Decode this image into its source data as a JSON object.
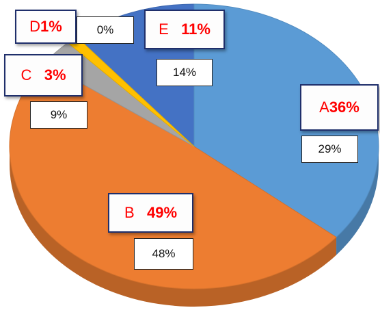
{
  "chart_data": {
    "type": "pie",
    "title": "",
    "slices": [
      {
        "label": "A",
        "label_pct": "36%",
        "outer_pct": "29%",
        "value": 36,
        "color": "#5b9bd5"
      },
      {
        "label": "B",
        "label_pct": "49%",
        "outer_pct": "48%",
        "value": 49,
        "color": "#ed7d31"
      },
      {
        "label": "C",
        "label_pct": "3%",
        "outer_pct": "9%",
        "value": 3,
        "color": "#a5a5a5"
      },
      {
        "label": "D",
        "label_pct": "1%",
        "outer_pct": "0%",
        "value": 1,
        "color": "#ffc000"
      },
      {
        "label": "E",
        "label_pct": "11%",
        "outer_pct": "14%",
        "value": 11,
        "color": "#4472c4"
      }
    ]
  }
}
